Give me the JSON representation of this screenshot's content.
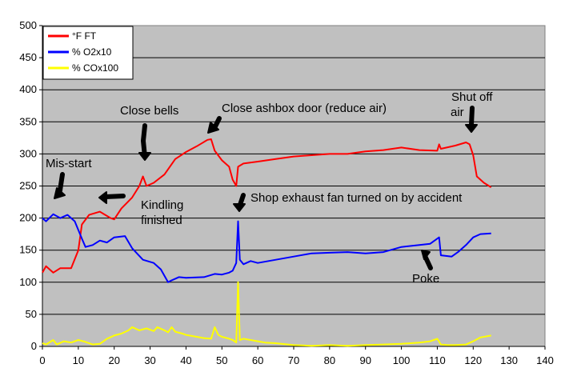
{
  "chart_data": {
    "type": "line",
    "title": "",
    "xlabel": "",
    "ylabel": "",
    "xlim": [
      0,
      140
    ],
    "ylim": [
      0,
      500
    ],
    "x_ticks": [
      "0",
      "10",
      "20",
      "30",
      "40",
      "50",
      "60",
      "70",
      "80",
      "90",
      "100",
      "110",
      "120",
      "130",
      "140"
    ],
    "y_ticks": [
      "0",
      "50",
      "100",
      "150",
      "200",
      "250",
      "300",
      "350",
      "400",
      "450",
      "500"
    ],
    "grid": "horizontal",
    "plot_background": "#c0c0c0",
    "legend_position": "top-left",
    "series": [
      {
        "name": "°F FT",
        "color": "#ff0000",
        "points": [
          [
            0,
            115
          ],
          [
            1,
            125
          ],
          [
            3,
            115
          ],
          [
            5,
            122
          ],
          [
            8,
            122
          ],
          [
            10,
            150
          ],
          [
            11,
            190
          ],
          [
            13,
            205
          ],
          [
            16,
            210
          ],
          [
            19,
            200
          ],
          [
            20,
            198
          ],
          [
            22,
            215
          ],
          [
            25,
            232
          ],
          [
            27,
            250
          ],
          [
            28,
            265
          ],
          [
            29,
            250
          ],
          [
            31,
            255
          ],
          [
            34,
            268
          ],
          [
            37,
            292
          ],
          [
            40,
            303
          ],
          [
            43,
            312
          ],
          [
            46,
            322
          ],
          [
            47,
            323
          ],
          [
            48,
            305
          ],
          [
            50,
            290
          ],
          [
            52,
            280
          ],
          [
            53,
            260
          ],
          [
            54,
            250
          ],
          [
            54.5,
            280
          ],
          [
            56,
            285
          ],
          [
            60,
            288
          ],
          [
            65,
            292
          ],
          [
            70,
            296
          ],
          [
            75,
            298
          ],
          [
            80,
            300
          ],
          [
            85,
            300
          ],
          [
            90,
            304
          ],
          [
            95,
            306
          ],
          [
            100,
            310
          ],
          [
            105,
            306
          ],
          [
            110,
            305
          ],
          [
            110.5,
            315
          ],
          [
            111,
            308
          ],
          [
            115,
            313
          ],
          [
            118,
            318
          ],
          [
            119,
            315
          ],
          [
            120,
            298
          ],
          [
            121,
            265
          ],
          [
            123,
            255
          ],
          [
            125,
            248
          ]
        ]
      },
      {
        "name": "% O2x10",
        "color": "#0000ff",
        "points": [
          [
            0,
            200
          ],
          [
            1,
            195
          ],
          [
            3,
            206
          ],
          [
            5,
            200
          ],
          [
            7,
            205
          ],
          [
            9,
            195
          ],
          [
            11,
            168
          ],
          [
            12,
            155
          ],
          [
            14,
            158
          ],
          [
            16,
            165
          ],
          [
            18,
            162
          ],
          [
            20,
            170
          ],
          [
            23,
            172
          ],
          [
            25,
            153
          ],
          [
            28,
            135
          ],
          [
            31,
            130
          ],
          [
            33,
            120
          ],
          [
            35,
            100
          ],
          [
            36,
            103
          ],
          [
            38,
            108
          ],
          [
            40,
            107
          ],
          [
            45,
            108
          ],
          [
            48,
            113
          ],
          [
            50,
            112
          ],
          [
            52,
            115
          ],
          [
            53,
            118
          ],
          [
            54,
            130
          ],
          [
            54.5,
            195
          ],
          [
            55,
            135
          ],
          [
            56,
            128
          ],
          [
            58,
            133
          ],
          [
            60,
            130
          ],
          [
            65,
            135
          ],
          [
            70,
            140
          ],
          [
            75,
            145
          ],
          [
            80,
            146
          ],
          [
            85,
            147
          ],
          [
            90,
            145
          ],
          [
            95,
            147
          ],
          [
            100,
            155
          ],
          [
            105,
            158
          ],
          [
            108,
            160
          ],
          [
            110,
            168
          ],
          [
            110.5,
            170
          ],
          [
            111,
            142
          ],
          [
            114,
            140
          ],
          [
            116,
            148
          ],
          [
            118,
            158
          ],
          [
            120,
            170
          ],
          [
            122,
            175
          ],
          [
            125,
            176
          ]
        ]
      },
      {
        "name": "% COx100",
        "color": "#ffff00",
        "points": [
          [
            0,
            5
          ],
          [
            1,
            3
          ],
          [
            3,
            10
          ],
          [
            4,
            3
          ],
          [
            6,
            8
          ],
          [
            8,
            6
          ],
          [
            10,
            10
          ],
          [
            12,
            7
          ],
          [
            14,
            3
          ],
          [
            16,
            4
          ],
          [
            18,
            12
          ],
          [
            20,
            17
          ],
          [
            22,
            20
          ],
          [
            24,
            25
          ],
          [
            25,
            30
          ],
          [
            27,
            25
          ],
          [
            29,
            28
          ],
          [
            31,
            24
          ],
          [
            32,
            30
          ],
          [
            34,
            25
          ],
          [
            35,
            22
          ],
          [
            36,
            30
          ],
          [
            37,
            23
          ],
          [
            39,
            20
          ],
          [
            40,
            18
          ],
          [
            45,
            13
          ],
          [
            47,
            12
          ],
          [
            48,
            30
          ],
          [
            49,
            18
          ],
          [
            50,
            15
          ],
          [
            52,
            12
          ],
          [
            53,
            10
          ],
          [
            54,
            6
          ],
          [
            54.5,
            100
          ],
          [
            55,
            10
          ],
          [
            56,
            12
          ],
          [
            58,
            10
          ],
          [
            60,
            8
          ],
          [
            62,
            6
          ],
          [
            65,
            5
          ],
          [
            70,
            2
          ],
          [
            75,
            1
          ],
          [
            80,
            2
          ],
          [
            85,
            1
          ],
          [
            90,
            2
          ],
          [
            95,
            3
          ],
          [
            100,
            4
          ],
          [
            105,
            6
          ],
          [
            108,
            8
          ],
          [
            109,
            10
          ],
          [
            110,
            12
          ],
          [
            111,
            3
          ],
          [
            113,
            2
          ],
          [
            115,
            2
          ],
          [
            118,
            3
          ],
          [
            120,
            8
          ],
          [
            122,
            14
          ],
          [
            125,
            17
          ]
        ]
      }
    ],
    "annotations": [
      {
        "id": "close-bells",
        "lines": [
          "Close bells"
        ]
      },
      {
        "id": "close-ashbox",
        "lines": [
          "Close ashbox door (reduce air)"
        ]
      },
      {
        "id": "shut-off-air",
        "lines": [
          "Shut off",
          "air"
        ]
      },
      {
        "id": "mis-start",
        "lines": [
          "Mis-start"
        ]
      },
      {
        "id": "kindling",
        "lines": [
          "Kindling",
          "finished"
        ]
      },
      {
        "id": "shop-exhaust",
        "lines": [
          "Shop exhaust fan turned on by accident"
        ]
      },
      {
        "id": "poke",
        "lines": [
          "Poke"
        ]
      }
    ]
  }
}
